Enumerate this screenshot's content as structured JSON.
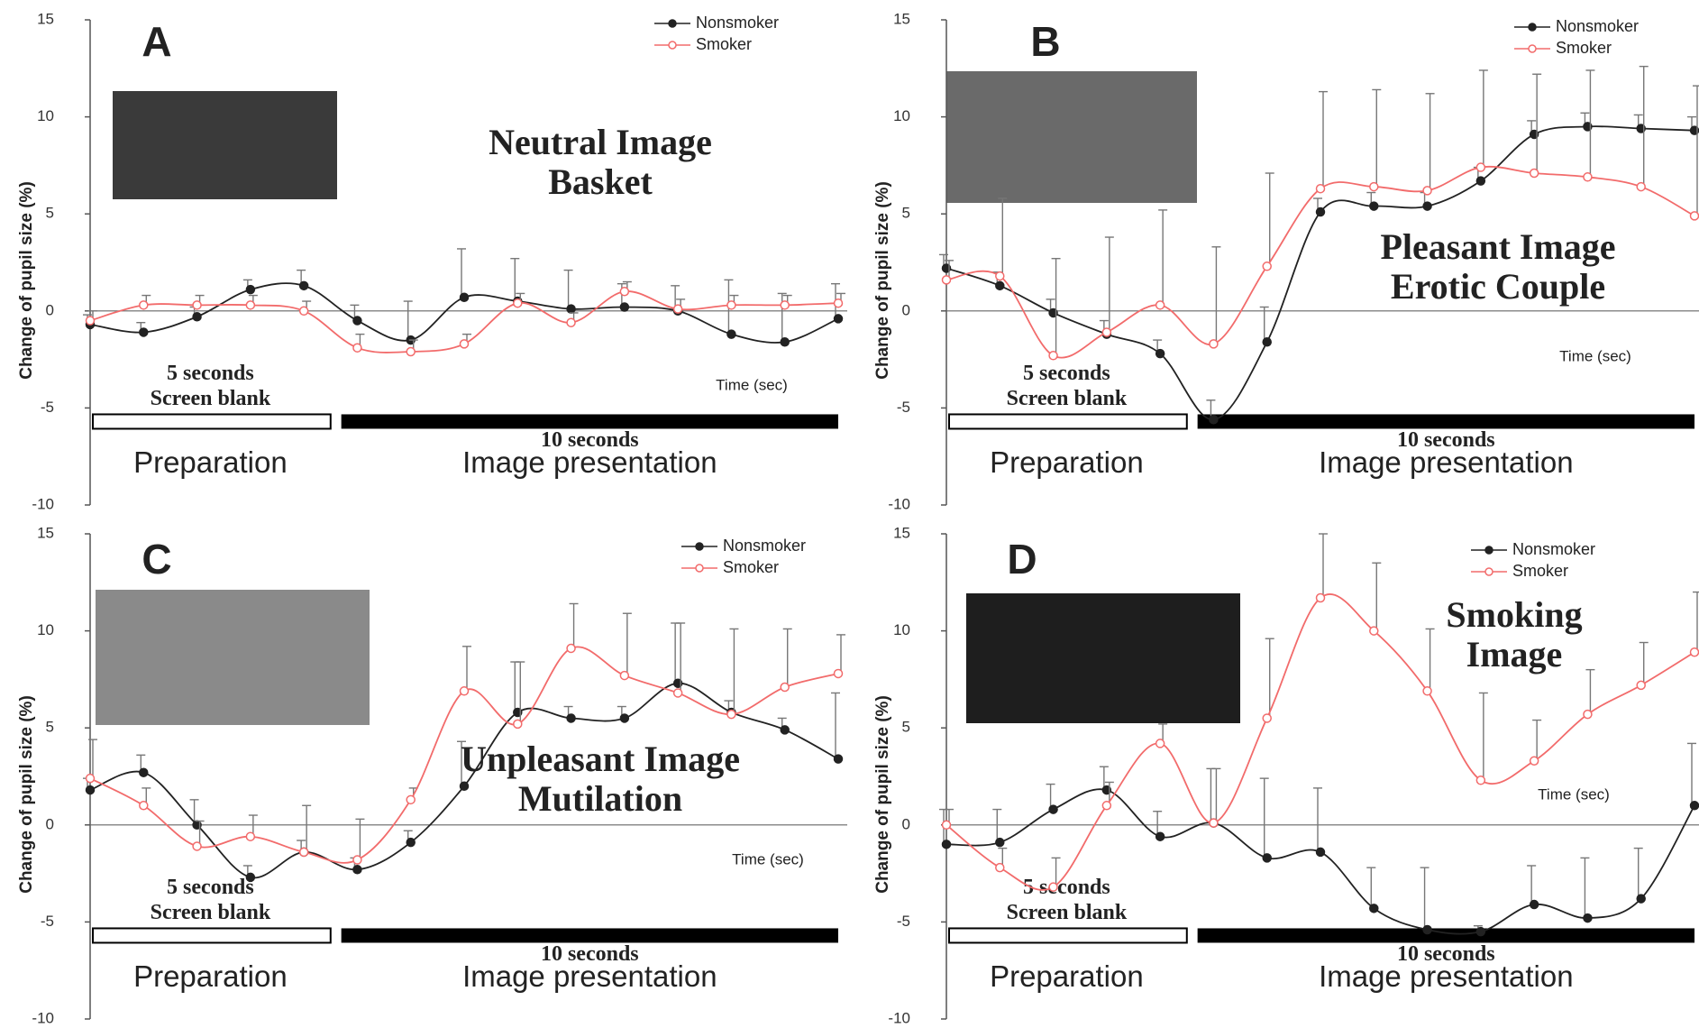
{
  "chart_data": [
    {
      "type": "line",
      "panel_label": "A",
      "title_lines": [
        "Neutral Image",
        "Basket"
      ],
      "y_label": "Change of pupil size (%)",
      "annotations": [
        "5 seconds",
        "Screen blank",
        "10 seconds",
        "Preparation",
        "Image presentation",
        "Time (sec)"
      ],
      "categories": [
        null,
        null,
        null,
        null,
        null,
        null,
        null,
        null,
        null,
        null,
        null,
        null,
        null,
        null,
        null
      ],
      "series": [
        {
          "name": "Nonsmoker",
          "color": "#222222",
          "marker": "filled",
          "values": [
            -0.7,
            -1.1,
            -0.3,
            1.1,
            1.3,
            -0.5,
            -1.5,
            0.7,
            0.5,
            0.1,
            0.2,
            0.0,
            -1.2,
            -1.6,
            -0.4
          ],
          "errors": [
            0.5,
            0.5,
            0.5,
            0.5,
            0.8,
            0.8,
            2.0,
            2.5,
            2.2,
            2.0,
            1.2,
            1.3,
            2.8,
            2.5,
            1.8
          ]
        },
        {
          "name": "Smoker",
          "color": "#f26b6b",
          "marker": "open",
          "values": [
            -0.5,
            0.3,
            0.3,
            0.3,
            0.0,
            -1.9,
            -2.1,
            -1.7,
            0.4,
            -0.6,
            1.0,
            0.1,
            0.3,
            0.3,
            0.4
          ],
          "errors": [
            0.5,
            0.5,
            0.5,
            0.5,
            0.5,
            0.7,
            0.6,
            0.5,
            0.5,
            0.5,
            0.5,
            0.5,
            0.5,
            0.5,
            0.5
          ]
        }
      ],
      "ylim": [
        -10,
        15
      ],
      "yticks": [
        -10,
        -5,
        0,
        5,
        10,
        15
      ]
    },
    {
      "type": "line",
      "panel_label": "B",
      "title_lines": [
        "Pleasant Image",
        "Erotic Couple"
      ],
      "y_label": "Change of pupil size (%)",
      "annotations": [
        "5 seconds",
        "Screen blank",
        "10 seconds",
        "Preparation",
        "Image presentation",
        "Time (sec)"
      ],
      "categories": [
        null,
        null,
        null,
        null,
        null,
        null,
        null,
        null,
        null,
        null,
        null,
        null,
        null,
        null,
        null
      ],
      "series": [
        {
          "name": "Nonsmoker",
          "color": "#222222",
          "marker": "filled",
          "values": [
            2.2,
            1.3,
            -0.1,
            -1.2,
            -2.2,
            -5.6,
            -1.6,
            5.1,
            5.4,
            5.4,
            6.7,
            9.1,
            9.5,
            9.4,
            9.3
          ],
          "errors": [
            0.7,
            0.7,
            0.7,
            0.7,
            0.7,
            1.0,
            1.8,
            0.7,
            0.7,
            0.7,
            0.7,
            0.7,
            0.7,
            0.7,
            0.7
          ]
        },
        {
          "name": "Smoker",
          "color": "#f26b6b",
          "marker": "open",
          "values": [
            1.6,
            1.8,
            -2.3,
            -1.1,
            0.3,
            -1.7,
            2.3,
            6.3,
            6.4,
            6.2,
            7.4,
            7.1,
            6.9,
            6.4,
            4.9
          ],
          "errors": [
            1.0,
            4.0,
            5.0,
            4.9,
            4.9,
            5.0,
            4.8,
            5.0,
            5.0,
            5.0,
            5.0,
            5.1,
            5.5,
            6.2,
            6.7
          ]
        }
      ],
      "ylim": [
        -10,
        15
      ],
      "yticks": [
        -10,
        -5,
        0,
        5,
        10,
        15
      ]
    },
    {
      "type": "line",
      "panel_label": "C",
      "title_lines": [
        "Unpleasant Image",
        "Mutilation"
      ],
      "y_label": "Change of pupil size (%)",
      "annotations": [
        "5 seconds",
        "Screen blank",
        "10 seconds",
        "Preparation",
        "Image presentation",
        "Time (sec)"
      ],
      "categories": [
        null,
        null,
        null,
        null,
        null,
        null,
        null,
        null,
        null,
        null,
        null,
        null,
        null,
        null,
        null
      ],
      "series": [
        {
          "name": "Nonsmoker",
          "color": "#222222",
          "marker": "filled",
          "values": [
            1.8,
            2.7,
            0.0,
            -2.7,
            -1.4,
            -2.3,
            -0.9,
            2.0,
            5.8,
            5.5,
            5.5,
            7.3,
            5.8,
            4.9,
            3.4
          ],
          "errors": [
            0.6,
            0.9,
            1.3,
            0.6,
            0.6,
            0.6,
            0.6,
            2.3,
            2.6,
            0.6,
            0.6,
            3.1,
            0.6,
            0.6,
            3.4
          ]
        },
        {
          "name": "Smoker",
          "color": "#f26b6b",
          "marker": "open",
          "values": [
            2.4,
            1.0,
            -1.1,
            -0.6,
            -1.4,
            -1.8,
            1.3,
            6.9,
            5.2,
            9.1,
            7.7,
            6.8,
            5.7,
            7.1,
            7.8
          ],
          "errors": [
            2.0,
            0.9,
            1.3,
            1.1,
            2.4,
            2.1,
            0.6,
            2.3,
            3.2,
            2.3,
            3.2,
            3.6,
            4.4,
            3.0,
            2.0
          ]
        }
      ],
      "ylim": [
        -10,
        15
      ],
      "yticks": [
        -10,
        -5,
        0,
        5,
        10,
        15
      ]
    },
    {
      "type": "line",
      "panel_label": "D",
      "title_lines": [
        "Smoking",
        "Image"
      ],
      "y_label": "Change of pupil size (%)",
      "annotations": [
        "5 seconds",
        "Screen blank",
        "10 seconds",
        "Preparation",
        "Image presentation",
        "Time (sec)"
      ],
      "categories": [
        null,
        null,
        null,
        null,
        null,
        null,
        null,
        null,
        null,
        null,
        null,
        null,
        null,
        null,
        null
      ],
      "series": [
        {
          "name": "Nonsmoker",
          "color": "#222222",
          "marker": "filled",
          "values": [
            -1.0,
            -0.9,
            0.8,
            1.8,
            -0.6,
            0.1,
            -1.7,
            -1.4,
            -4.3,
            -5.4,
            -5.5,
            -4.1,
            -4.8,
            -3.8,
            1.0
          ],
          "errors": [
            1.8,
            1.7,
            1.3,
            1.2,
            1.3,
            2.8,
            4.1,
            3.3,
            2.1,
            3.2,
            0.3,
            2.0,
            3.1,
            2.6,
            3.2
          ]
        },
        {
          "name": "Smoker",
          "color": "#f26b6b",
          "marker": "open",
          "values": [
            0.0,
            -2.2,
            -3.2,
            1.0,
            4.2,
            0.1,
            5.5,
            11.7,
            10.0,
            6.9,
            2.3,
            3.3,
            5.7,
            7.2,
            8.9
          ],
          "errors": [
            0.8,
            1.0,
            1.5,
            1.2,
            1.0,
            2.8,
            4.1,
            3.3,
            3.5,
            3.2,
            4.5,
            2.1,
            2.3,
            2.2,
            3.1
          ]
        }
      ],
      "ylim": [
        -10,
        15
      ],
      "yticks": [
        -10,
        -5,
        0,
        5,
        10,
        15
      ]
    }
  ]
}
